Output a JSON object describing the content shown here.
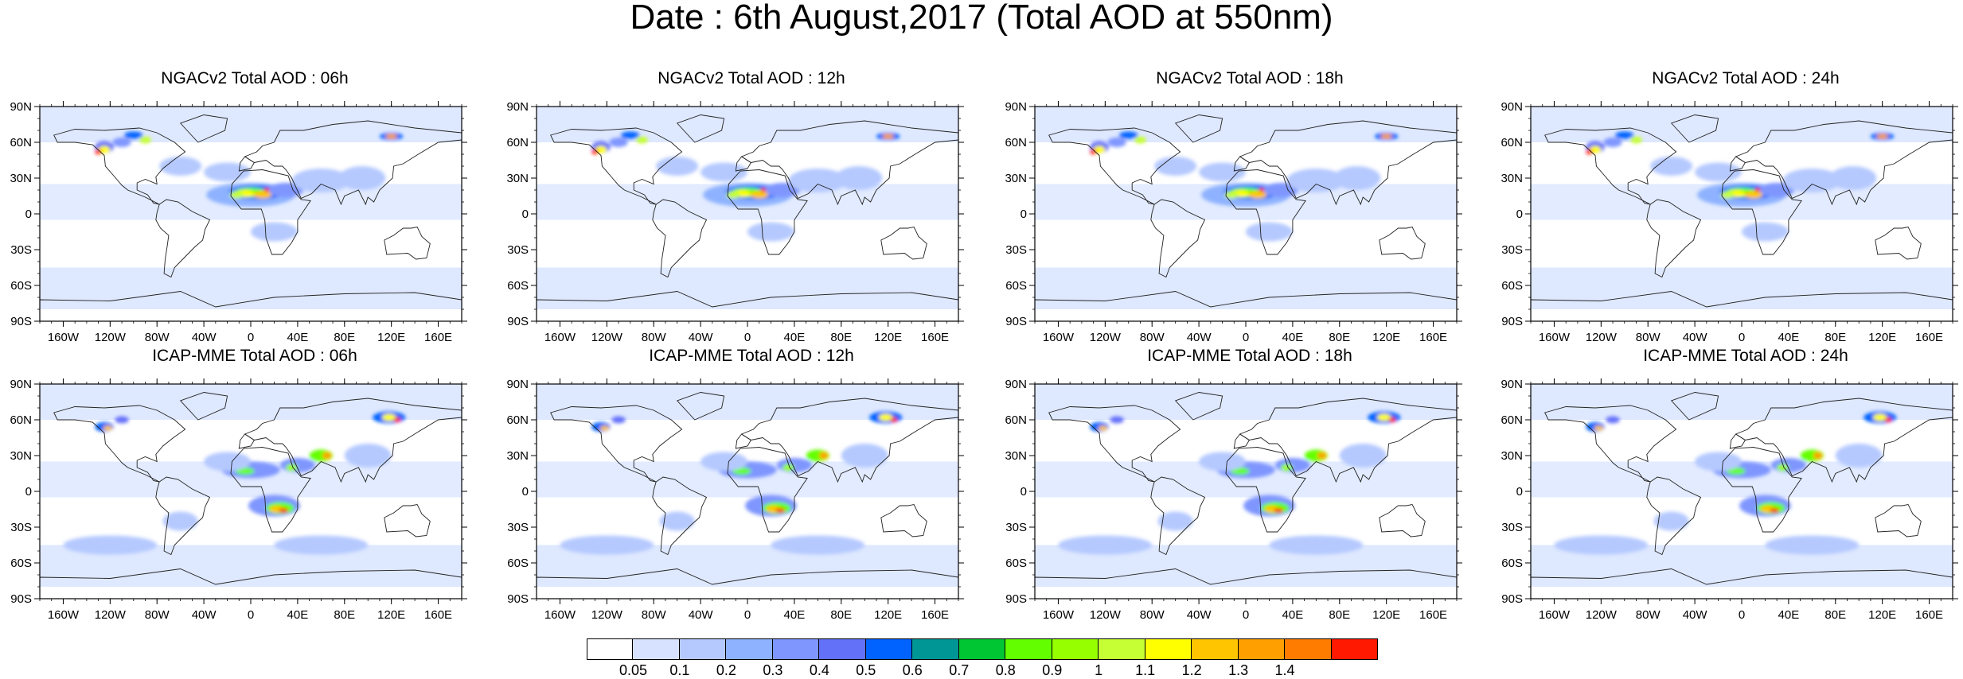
{
  "title": "Date : 6th August,2017 (Total AOD at 550nm)",
  "panels": [
    {
      "title": "NGACv2 Total AOD : 06h",
      "model": "NGACv2",
      "lead": "06h"
    },
    {
      "title": "NGACv2 Total AOD : 12h",
      "model": "NGACv2",
      "lead": "12h"
    },
    {
      "title": "NGACv2 Total AOD : 18h",
      "model": "NGACv2",
      "lead": "18h"
    },
    {
      "title": "NGACv2 Total AOD : 24h",
      "model": "NGACv2",
      "lead": "24h"
    },
    {
      "title": "ICAP-MME Total AOD : 06h",
      "model": "ICAP-MME",
      "lead": "06h"
    },
    {
      "title": "ICAP-MME Total AOD : 12h",
      "model": "ICAP-MME",
      "lead": "12h"
    },
    {
      "title": "ICAP-MME Total AOD : 18h",
      "model": "ICAP-MME",
      "lead": "18h"
    },
    {
      "title": "ICAP-MME Total AOD : 24h",
      "model": "ICAP-MME",
      "lead": "24h"
    }
  ],
  "lat_labels": [
    "90N",
    "60N",
    "30N",
    "0",
    "30S",
    "60S",
    "90S"
  ],
  "lon_labels": [
    "160W",
    "120W",
    "80W",
    "40W",
    "0",
    "40E",
    "80E",
    "120E",
    "160E"
  ],
  "colorbar": {
    "colors": [
      "#ffffff",
      "#d6e2ff",
      "#b5c9ff",
      "#8eb2ff",
      "#7f96ff",
      "#6370f8",
      "#0063ff",
      "#009696",
      "#00c633",
      "#63ff00",
      "#96ff00",
      "#c6ff33",
      "#ffff00",
      "#ffc600",
      "#ffa000",
      "#ff7c00",
      "#ff1900"
    ],
    "labels": [
      "0.05",
      "0.1",
      "0.2",
      "0.3",
      "0.4",
      "0.5",
      "0.6",
      "0.7",
      "0.8",
      "0.9",
      "1",
      "1.1",
      "1.2",
      "1.3",
      "1.4"
    ]
  }
}
